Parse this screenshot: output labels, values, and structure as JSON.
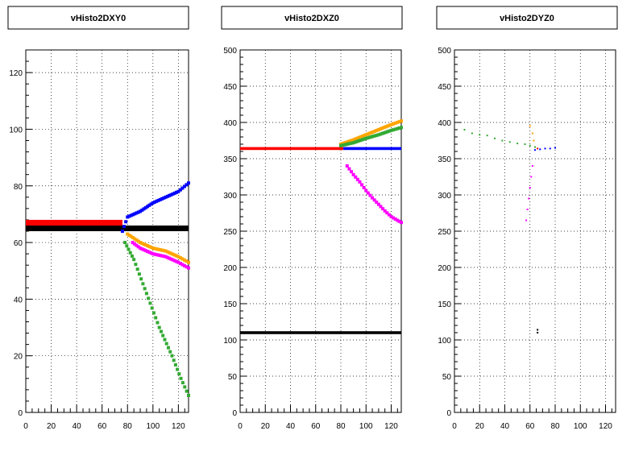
{
  "colors": {
    "red": "#ff0000",
    "blue": "#0000ff",
    "black": "#000000",
    "green": "#33aa33",
    "orange": "#ffa500",
    "magenta": "#ff00ff"
  },
  "chart_data": [
    {
      "type": "scatter",
      "title": "vHisto2DXY0",
      "xlim": [
        0,
        128
      ],
      "ylim": [
        0,
        128
      ],
      "xticks": [
        0,
        20,
        40,
        60,
        80,
        100,
        120
      ],
      "yticks": [
        0,
        20,
        40,
        60,
        80,
        100,
        120
      ],
      "grid": true,
      "series": [
        {
          "color": "black",
          "x": [
            0,
            128
          ],
          "y": [
            65,
            65
          ],
          "style": "band",
          "width": 2
        },
        {
          "color": "red",
          "x": [
            0,
            76
          ],
          "y": [
            67,
            67
          ],
          "style": "band",
          "width": 2
        },
        {
          "color": "blue",
          "x": [
            76,
            80,
            90,
            100,
            110,
            120,
            128
          ],
          "y": [
            64,
            69,
            71,
            74,
            76,
            78,
            81
          ],
          "style": "points"
        },
        {
          "color": "orange",
          "x": [
            80,
            90,
            100,
            110,
            120,
            128
          ],
          "y": [
            63,
            60,
            58,
            57,
            55,
            53
          ],
          "style": "points"
        },
        {
          "color": "magenta",
          "x": [
            84,
            90,
            100,
            110,
            120,
            128
          ],
          "y": [
            60,
            58,
            56,
            55,
            53,
            51
          ],
          "style": "points"
        },
        {
          "color": "green",
          "x": [
            78,
            85,
            95,
            105,
            115,
            122,
            128
          ],
          "y": [
            60,
            54,
            42,
            30,
            20,
            12,
            6
          ],
          "style": "points"
        }
      ]
    },
    {
      "type": "scatter",
      "title": "vHisto2DXZ0",
      "xlim": [
        0,
        128
      ],
      "ylim": [
        0,
        500
      ],
      "xticks": [
        0,
        20,
        40,
        60,
        80,
        100,
        120
      ],
      "yticks": [
        0,
        50,
        100,
        150,
        200,
        250,
        300,
        350,
        400,
        450,
        500
      ],
      "grid": true,
      "series": [
        {
          "color": "black",
          "x": [
            0,
            128
          ],
          "y": [
            110,
            110
          ],
          "style": "band",
          "width": 4
        },
        {
          "color": "red",
          "x": [
            0,
            82
          ],
          "y": [
            364,
            364
          ],
          "style": "band",
          "width": 4
        },
        {
          "color": "blue",
          "x": [
            82,
            128
          ],
          "y": [
            364,
            364
          ],
          "style": "band",
          "width": 4
        },
        {
          "color": "orange",
          "x": [
            80,
            90,
            100,
            110,
            120,
            128
          ],
          "y": [
            370,
            376,
            383,
            390,
            397,
            402
          ],
          "style": "points"
        },
        {
          "color": "green",
          "x": [
            80,
            90,
            100,
            110,
            120,
            128
          ],
          "y": [
            368,
            372,
            378,
            383,
            389,
            393
          ],
          "style": "points"
        },
        {
          "color": "magenta",
          "x": [
            85,
            90,
            95,
            100,
            105,
            110,
            115,
            120,
            125,
            128
          ],
          "y": [
            340,
            328,
            318,
            306,
            296,
            287,
            278,
            270,
            265,
            262
          ],
          "style": "points"
        }
      ]
    },
    {
      "type": "scatter",
      "title": "vHisto2DYZ0",
      "xlim": [
        0,
        128
      ],
      "ylim": [
        0,
        500
      ],
      "xticks": [
        0,
        20,
        40,
        60,
        80,
        100,
        120
      ],
      "yticks": [
        0,
        50,
        100,
        150,
        200,
        250,
        300,
        350,
        400,
        450,
        500
      ],
      "grid": true,
      "series": [
        {
          "color": "green",
          "x": [
            8,
            14,
            20,
            26,
            32,
            38,
            44,
            50,
            56,
            60,
            64
          ],
          "y": [
            390,
            385,
            383,
            382,
            378,
            375,
            373,
            371,
            370,
            368,
            366
          ],
          "style": "dots"
        },
        {
          "color": "orange",
          "x": [
            60,
            62,
            63
          ],
          "y": [
            395,
            385,
            375
          ],
          "style": "dots"
        },
        {
          "color": "blue",
          "x": [
            64,
            68,
            72,
            76,
            80
          ],
          "y": [
            362,
            363,
            364,
            364,
            365
          ],
          "style": "dots"
        },
        {
          "color": "magenta",
          "x": [
            57,
            58,
            59,
            60,
            61,
            62
          ],
          "y": [
            265,
            280,
            295,
            310,
            325,
            340
          ],
          "style": "dots"
        },
        {
          "color": "red",
          "x": [
            66
          ],
          "y": [
            364
          ],
          "style": "dots"
        },
        {
          "color": "black",
          "x": [
            66,
            66
          ],
          "y": [
            110,
            114
          ],
          "style": "dots"
        }
      ]
    }
  ]
}
